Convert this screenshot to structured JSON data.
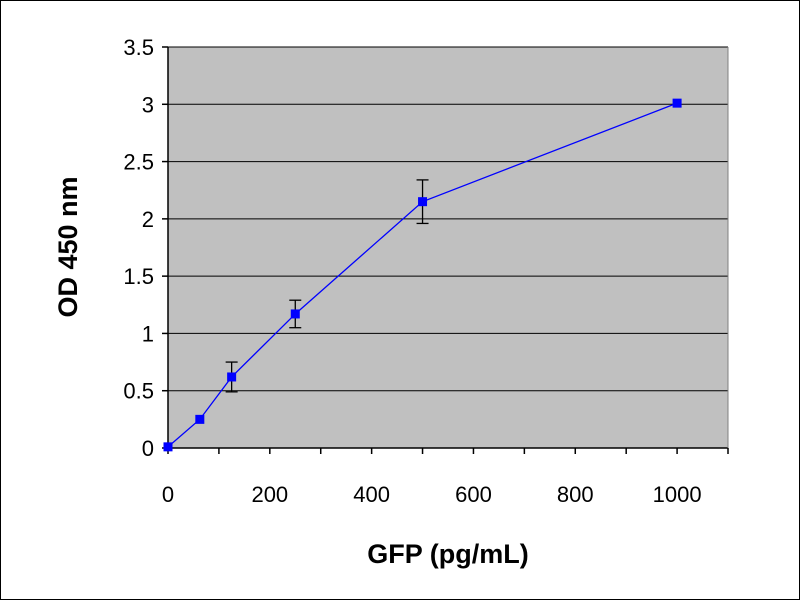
{
  "chart_data": {
    "type": "line",
    "title": "",
    "xlabel": "GFP (pg/mL)",
    "ylabel": "OD 450 nm",
    "xlim": [
      0,
      1100
    ],
    "ylim": [
      0,
      3.5
    ],
    "x_ticks": [
      0,
      200,
      400,
      600,
      800,
      1000
    ],
    "y_ticks": [
      0,
      0.5,
      1,
      1.5,
      2,
      2.5,
      3,
      3.5
    ],
    "x_tick_labels": [
      "0",
      "200",
      "400",
      "600",
      "800",
      "1000"
    ],
    "y_tick_labels": [
      "0",
      "0.5",
      "1",
      "1.5",
      "2",
      "2.5",
      "3",
      "3.5"
    ],
    "grid": "horizontal",
    "legend": "none",
    "series": [
      {
        "x": [
          0,
          62.5,
          125,
          250,
          500,
          1000
        ],
        "y": [
          0.01,
          0.25,
          0.62,
          1.17,
          2.15,
          3.01
        ],
        "error": [
          0,
          0,
          0.13,
          0.12,
          0.19,
          0
        ]
      }
    ],
    "colors": {
      "plot_background": "#c0c0c0",
      "series": "#0000ff",
      "gridline": "#000000",
      "error_bar": "#000000"
    }
  }
}
